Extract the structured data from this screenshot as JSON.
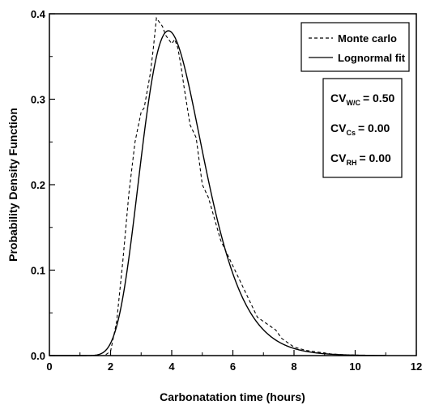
{
  "chart_data": {
    "type": "line",
    "xlabel": "Carbonatation time (hours)",
    "ylabel": "Probability Density Function",
    "xlim": [
      0,
      12
    ],
    "ylim": [
      0,
      0.4
    ],
    "xticks": [
      "0",
      "2",
      "4",
      "6",
      "8",
      "10",
      "12"
    ],
    "yticks": [
      "0.0",
      "0.1",
      "0.2",
      "0.3",
      "0.4"
    ],
    "grid": false,
    "legend_position": "top-right",
    "series": [
      {
        "name": "Monte carlo",
        "style": "dashed",
        "color": "#000000",
        "x": [
          0,
          1.8,
          2.0,
          2.2,
          2.4,
          2.6,
          2.8,
          3.0,
          3.1,
          3.2,
          3.3,
          3.4,
          3.5,
          3.6,
          3.7,
          3.8,
          3.9,
          4.0,
          4.1,
          4.2,
          4.3,
          4.4,
          4.6,
          4.8,
          5.0,
          5.2,
          5.4,
          5.6,
          5.8,
          6.0,
          6.2,
          6.4,
          6.6,
          6.8,
          7.0,
          7.2,
          7.4,
          7.6,
          7.8,
          8.0,
          8.4,
          8.8,
          9.2,
          9.6,
          10.0,
          10.4,
          11.0
        ],
        "y": [
          0,
          0,
          0.005,
          0.04,
          0.11,
          0.19,
          0.25,
          0.285,
          0.29,
          0.31,
          0.33,
          0.36,
          0.395,
          0.39,
          0.385,
          0.375,
          0.37,
          0.365,
          0.37,
          0.36,
          0.34,
          0.315,
          0.27,
          0.255,
          0.2,
          0.185,
          0.16,
          0.135,
          0.12,
          0.105,
          0.09,
          0.075,
          0.06,
          0.045,
          0.04,
          0.035,
          0.03,
          0.02,
          0.015,
          0.01,
          0.006,
          0.004,
          0.002,
          0.001,
          0.0005,
          0.0002,
          0
        ]
      },
      {
        "name": "Lognormal fit",
        "style": "solid",
        "color": "#000000",
        "distribution": {
          "kind": "lognormal",
          "mu": 1.4271,
          "sigma": 0.2606
        }
      }
    ],
    "annotations": {
      "cv_lines": [
        {
          "prefix": "CV",
          "subscript": "W/C",
          "value": "= 0.50"
        },
        {
          "prefix": "CV",
          "subscript": "Cs",
          "value": "= 0.00"
        },
        {
          "prefix": "CV",
          "subscript": "RH",
          "value": "= 0.00"
        }
      ]
    }
  }
}
